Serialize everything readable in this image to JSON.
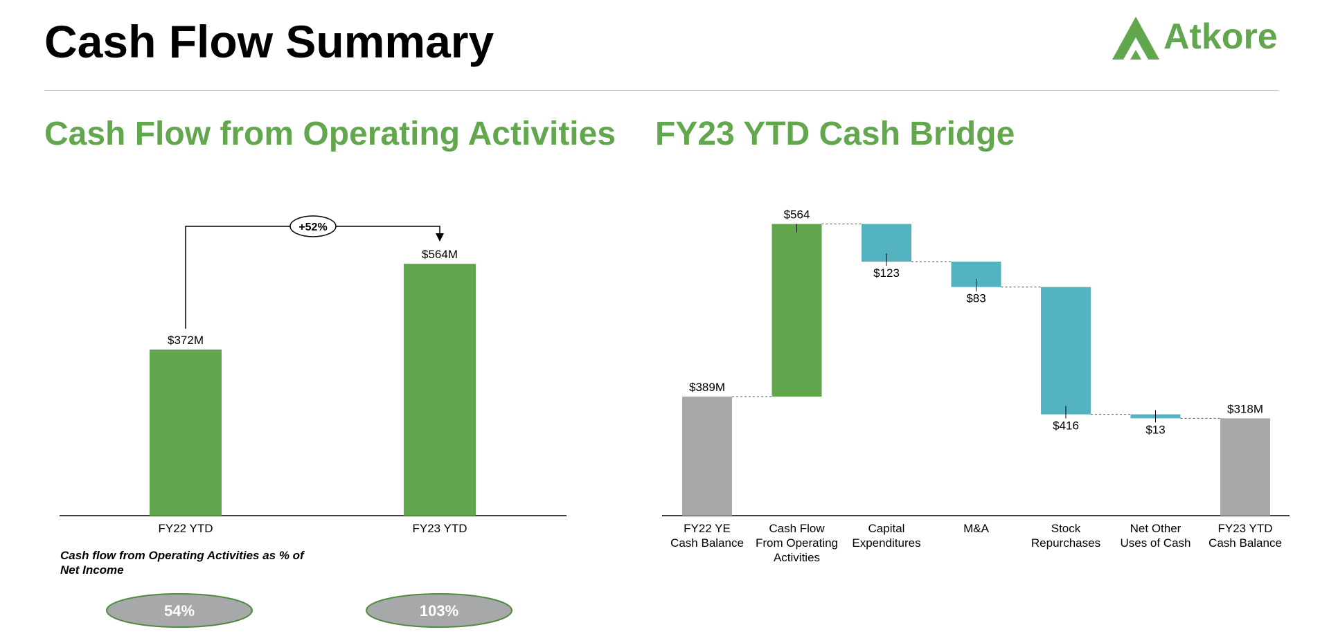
{
  "page": {
    "title": "Cash Flow Summary"
  },
  "logo": {
    "text": "Atkore",
    "color": "#62a64e"
  },
  "colors": {
    "green": "#62a64e",
    "teal": "#53b3c1",
    "gray": "#a7a8aa",
    "axis": "#000000"
  },
  "chart_data": [
    {
      "type": "bar",
      "title": "Cash Flow from Operating Activities",
      "categories": [
        "FY22 YTD",
        "FY23 YTD"
      ],
      "values": [
        372,
        564
      ],
      "data_labels": [
        "$372M",
        "$564M"
      ],
      "ylim": [
        0,
        750
      ],
      "change_label": "+52%",
      "sub_caption": "Cash flow from Operating Activities as % of Net Income",
      "percent_of_net_income": [
        "54%",
        "103%"
      ]
    },
    {
      "type": "bar",
      "title": "FY23 YTD Cash Bridge",
      "subtype": "waterfall",
      "categories": [
        [
          "FY22 YE",
          "Cash Balance"
        ],
        [
          "Cash Flow",
          "From Operating",
          "Activities"
        ],
        [
          "Capital",
          "Expenditures"
        ],
        [
          "M&A"
        ],
        [
          "Stock",
          "Repurchases"
        ],
        [
          "Net Other",
          "Uses of Cash"
        ],
        [
          "FY23 YTD",
          "Cash Balance"
        ]
      ],
      "steps": [
        {
          "kind": "total",
          "value": 389,
          "label": "$389M"
        },
        {
          "kind": "increase",
          "value": 564,
          "label": "$564"
        },
        {
          "kind": "decrease",
          "value": 123,
          "label": "$123"
        },
        {
          "kind": "decrease",
          "value": 83,
          "label": "$83"
        },
        {
          "kind": "decrease",
          "value": 416,
          "label": "$416"
        },
        {
          "kind": "decrease",
          "value": 13,
          "label": "$13"
        },
        {
          "kind": "total",
          "value": 318,
          "label": "$318M"
        }
      ],
      "ylim": [
        0,
        1000
      ]
    }
  ]
}
